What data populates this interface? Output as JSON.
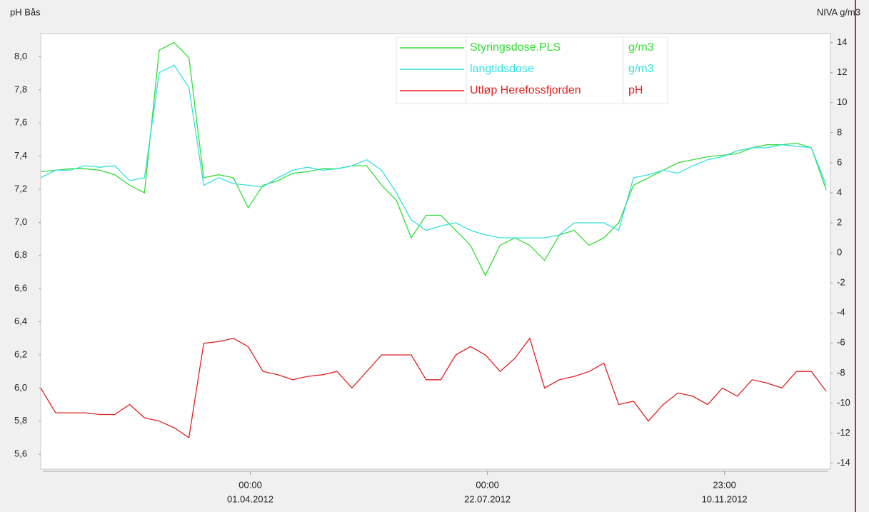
{
  "chart_data": {
    "type": "line",
    "y_label": "pH Bås",
    "y2_label": "NIVA g/m3",
    "x": [
      "2011-12-24",
      "2011-12-31",
      "2012-01-07",
      "2012-01-14",
      "2012-01-21",
      "2012-01-28",
      "2012-02-04",
      "2012-02-11",
      "2012-02-18",
      "2012-02-25",
      "2012-03-03",
      "2012-03-10",
      "2012-03-17",
      "2012-03-24",
      "2012-03-31",
      "2012-04-07",
      "2012-04-14",
      "2012-04-21",
      "2012-04-28",
      "2012-05-05",
      "2012-05-12",
      "2012-05-19",
      "2012-05-26",
      "2012-06-02",
      "2012-06-09",
      "2012-06-16",
      "2012-06-23",
      "2012-06-30",
      "2012-07-07",
      "2012-07-14",
      "2012-07-21",
      "2012-07-28",
      "2012-08-04",
      "2012-08-11",
      "2012-08-18",
      "2012-08-25",
      "2012-09-01",
      "2012-09-08",
      "2012-09-15",
      "2012-09-22",
      "2012-09-29",
      "2012-10-06",
      "2012-10-13",
      "2012-10-20",
      "2012-10-27",
      "2012-11-03",
      "2012-11-10",
      "2012-11-17",
      "2012-11-24",
      "2012-12-01",
      "2012-12-08",
      "2012-12-15",
      "2012-12-22",
      "2012-12-29"
    ],
    "xlim": [
      "2011-12-24",
      "2012-12-31"
    ],
    "xticks": [
      {
        "value": "2012-04-01T00:00",
        "label": [
          "00:00",
          "01.04.2012"
        ]
      },
      {
        "value": "2012-07-22T00:00",
        "label": [
          "00:00",
          "22.07.2012"
        ]
      },
      {
        "value": "2012-11-10T23:00",
        "label": [
          "23:00",
          "10.11.2012"
        ]
      }
    ],
    "ylim": [
      5.51,
      8.14
    ],
    "yticks": [
      {
        "value": 5.6,
        "label": "5,6"
      },
      {
        "value": 5.8,
        "label": "5,8"
      },
      {
        "value": 6.0,
        "label": "6,0"
      },
      {
        "value": 6.2,
        "label": "6,2"
      },
      {
        "value": 6.4,
        "label": "6,4"
      },
      {
        "value": 6.6,
        "label": "6,6"
      },
      {
        "value": 6.8,
        "label": "6,8"
      },
      {
        "value": 7.0,
        "label": "7,0"
      },
      {
        "value": 7.2,
        "label": "7,2"
      },
      {
        "value": 7.4,
        "label": "7,4"
      },
      {
        "value": 7.6,
        "label": "7,6"
      },
      {
        "value": 7.8,
        "label": "7,8"
      },
      {
        "value": 8.0,
        "label": "8,0"
      }
    ],
    "y2lim": [
      -14.4,
      14.6
    ],
    "y2ticks": [
      -14,
      -12,
      -10,
      -8,
      -6,
      -4,
      -2,
      0,
      2,
      4,
      6,
      8,
      10,
      12,
      14
    ],
    "series": [
      {
        "name": "Styringsdose.PLS",
        "unit": "g/m3",
        "color": "#33dd33",
        "axis": "y2",
        "values": [
          5.4,
          5.5,
          5.6,
          5.6,
          5.5,
          5.2,
          4.5,
          4.0,
          13.5,
          14,
          13,
          5.0,
          5.2,
          5.0,
          3.0,
          4.5,
          4.8,
          5.3,
          5.4,
          5.6,
          5.6,
          5.8,
          5.8,
          4.5,
          3.5,
          1.0,
          2.5,
          2.5,
          1.5,
          0.5,
          -1.5,
          0.5,
          1.0,
          0.5,
          -0.5,
          1.2,
          1.5,
          0.5,
          1.0,
          2.0,
          4.5,
          5.0,
          5.5,
          6.0,
          6.2,
          6.4,
          6.5,
          6.6,
          7.0,
          7.2,
          7.2,
          7.3,
          7.0,
          4.2
        ]
      },
      {
        "name": "langtidsdose",
        "unit": "g/m3",
        "color": "#33e0e0",
        "axis": "y2",
        "values": [
          5.0,
          5.5,
          5.5,
          5.8,
          5.7,
          5.8,
          4.8,
          5.0,
          12,
          12.5,
          11,
          4.5,
          5.0,
          4.6,
          4.5,
          4.4,
          5.0,
          5.5,
          5.7,
          5.5,
          5.6,
          5.8,
          6.2,
          5.5,
          4.0,
          2.2,
          1.5,
          1.8,
          2.0,
          1.5,
          1.2,
          1.0,
          1.0,
          1.0,
          1.0,
          1.2,
          2.0,
          2.0,
          2.0,
          1.5,
          5.0,
          5.2,
          5.5,
          5.3,
          5.8,
          6.2,
          6.4,
          6.8,
          7.0,
          7.0,
          7.2,
          7.1,
          7.0,
          4.5
        ]
      },
      {
        "name": "Utløp Herefossfjorden",
        "unit": "pH",
        "color": "#e02020",
        "values": [
          6.0,
          5.85,
          5.85,
          5.85,
          5.84,
          5.84,
          5.9,
          5.82,
          5.8,
          5.76,
          5.7,
          6.27,
          6.28,
          6.3,
          6.25,
          6.1,
          6.08,
          6.05,
          6.07,
          6.08,
          6.1,
          6.0,
          6.1,
          6.2,
          6.2,
          6.2,
          6.05,
          6.05,
          6.2,
          6.25,
          6.2,
          6.1,
          6.18,
          6.3,
          6.0,
          6.05,
          6.07,
          6.1,
          6.15,
          5.9,
          5.92,
          5.8,
          5.9,
          5.97,
          5.95,
          5.9,
          6.0,
          5.95,
          6.05,
          6.03,
          6.0,
          6.1,
          6.1,
          5.98
        ]
      }
    ]
  }
}
